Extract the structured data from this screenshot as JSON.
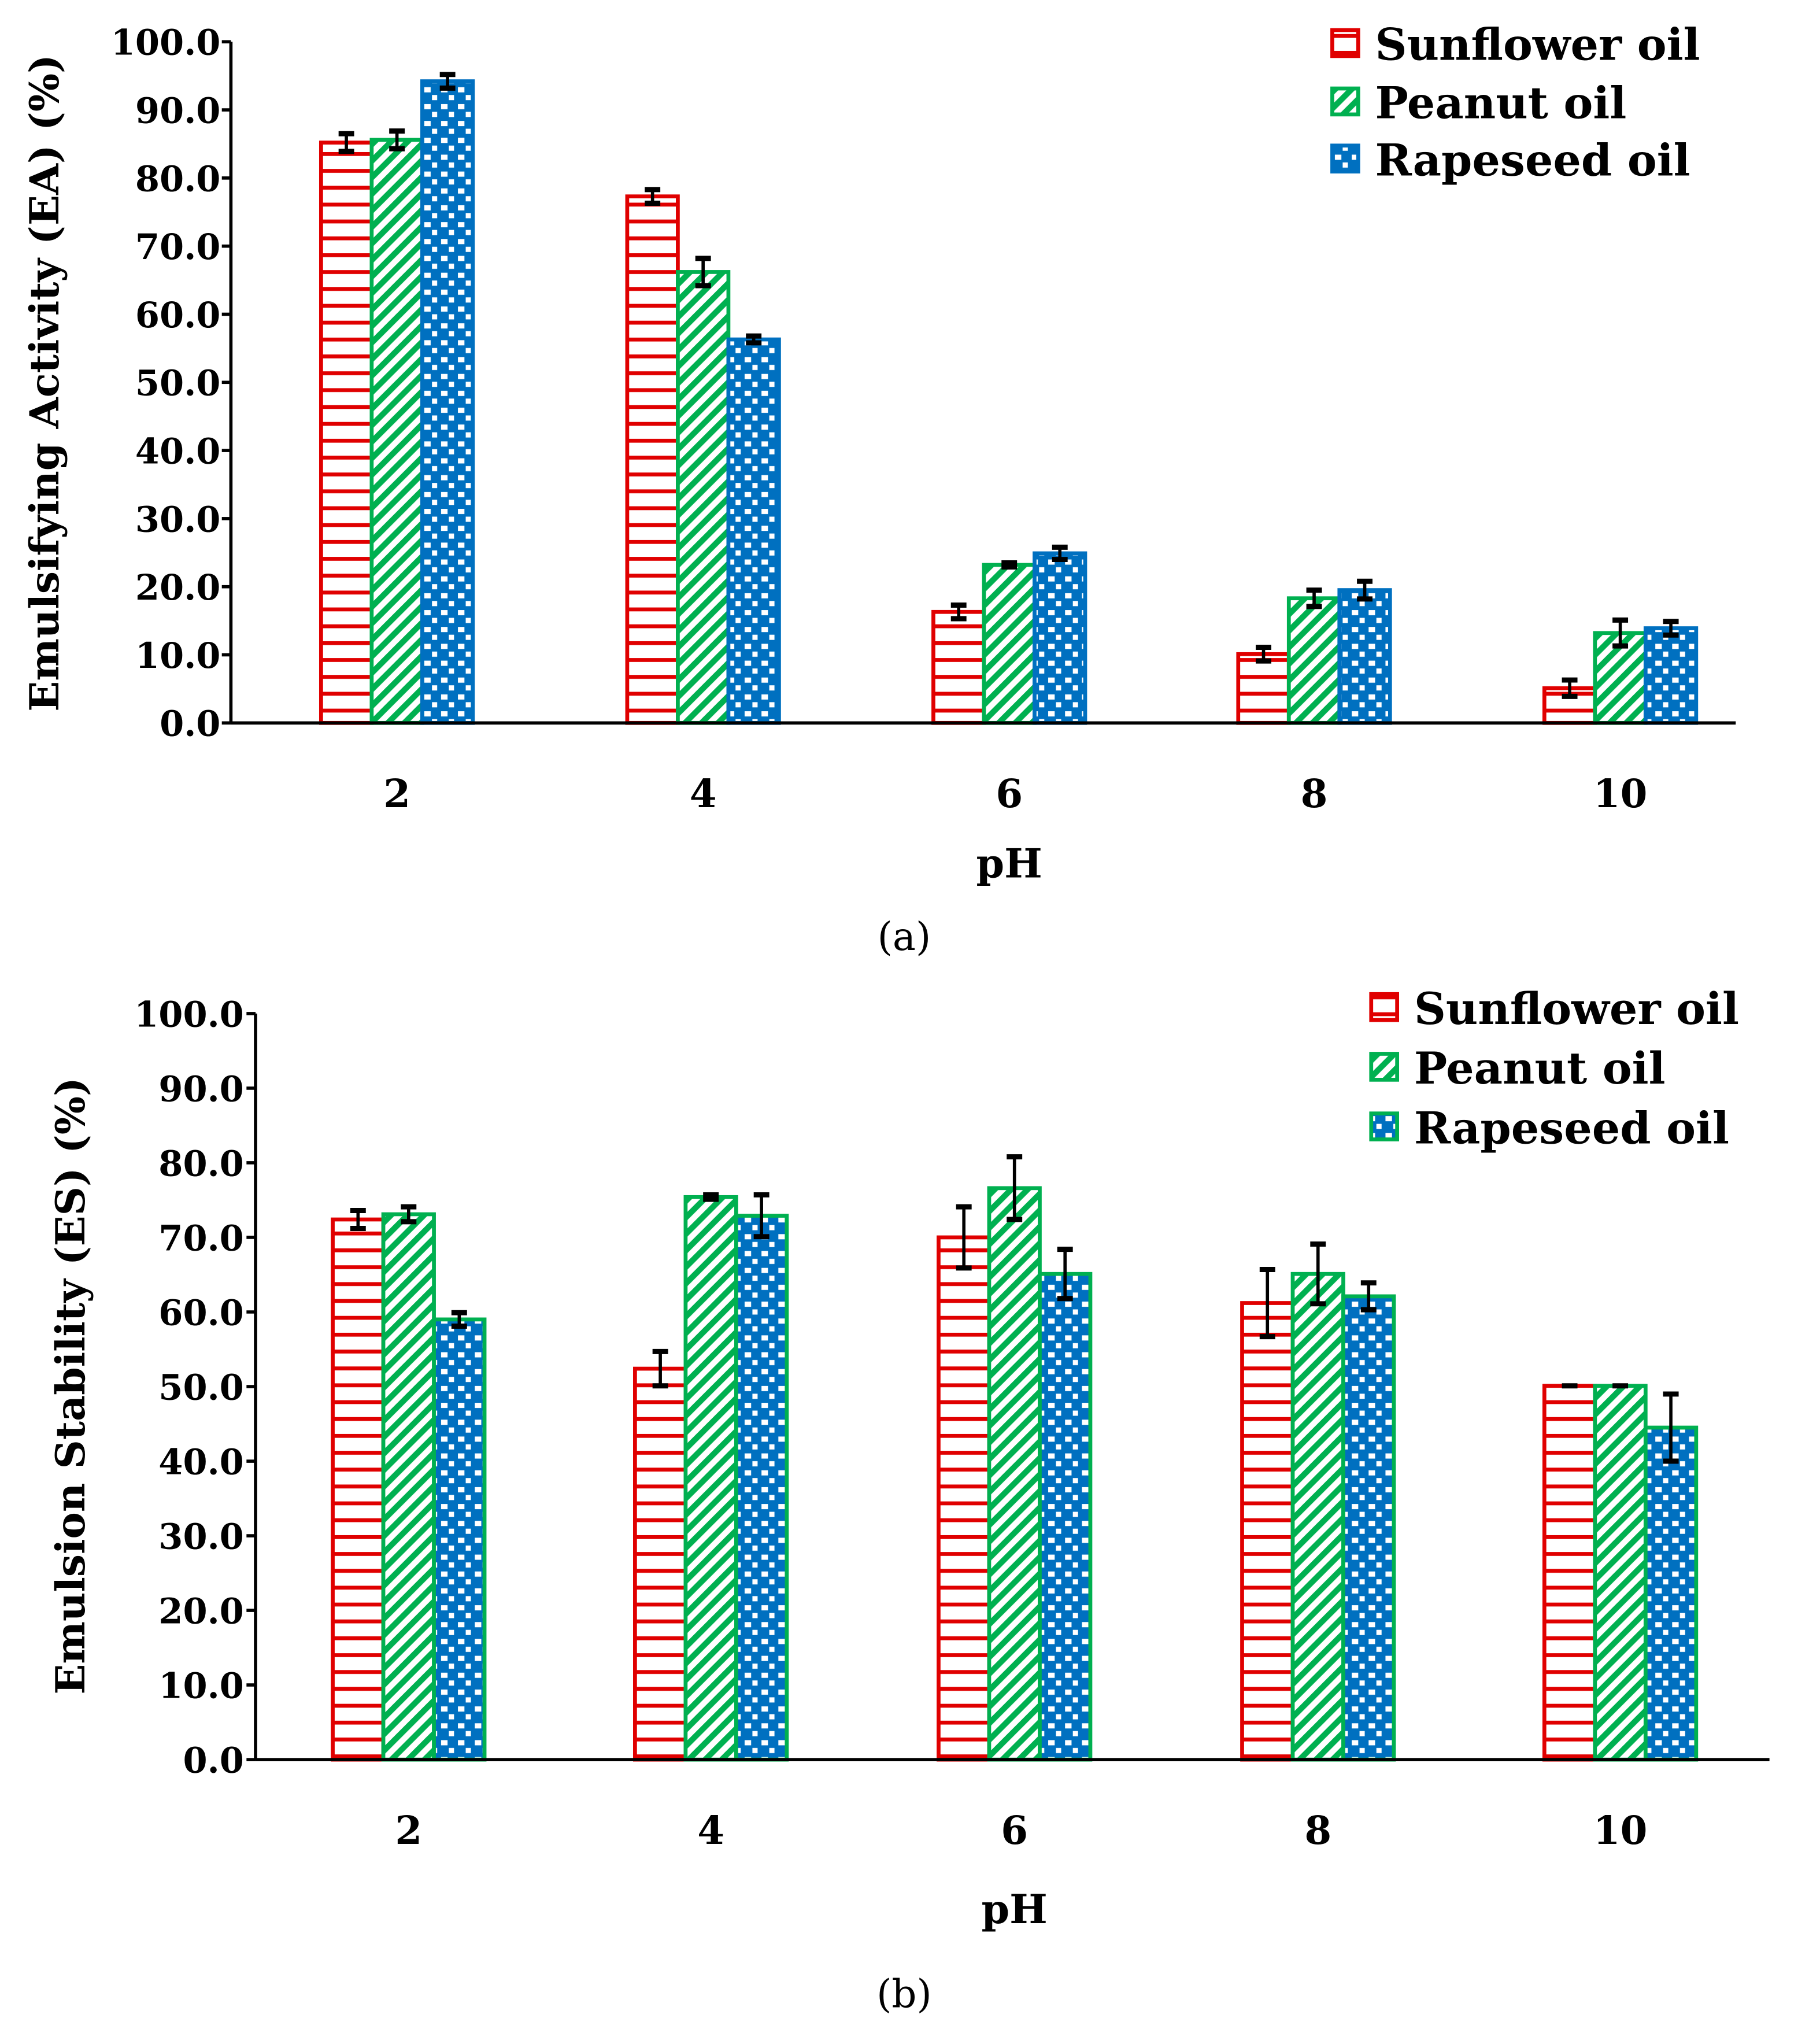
{
  "colors": {
    "sunflower": "#e00000",
    "peanut": "#00b050",
    "rapeseed": "#0070c0"
  },
  "chart_data": [
    {
      "type": "bar",
      "caption": "(a)",
      "xlabel": "pH",
      "ylabel": "Emulsifying Activity (EA) (%)",
      "ylim": [
        0,
        100
      ],
      "yticks": [
        "0.0",
        "10.0",
        "20.0",
        "30.0",
        "40.0",
        "50.0",
        "60.0",
        "70.0",
        "80.0",
        "90.0",
        "100.0"
      ],
      "categories": [
        "2",
        "4",
        "6",
        "8",
        "10"
      ],
      "legend_position": "top-right",
      "series": [
        {
          "name": "Sunflower oil",
          "pattern": "horizontal-lines",
          "values": [
            85.2,
            77.3,
            16.3,
            10.1,
            5.1
          ],
          "errors": [
            1.3,
            1.0,
            1.0,
            1.0,
            1.2
          ]
        },
        {
          "name": "Peanut oil",
          "pattern": "diagonal-lines",
          "values": [
            85.6,
            66.2,
            23.2,
            18.3,
            13.2
          ],
          "errors": [
            1.3,
            2.0,
            0.3,
            1.2,
            1.9
          ]
        },
        {
          "name": "Rapeseed oil",
          "pattern": "dotted",
          "values": [
            94.2,
            56.3,
            24.9,
            19.5,
            13.9
          ],
          "errors": [
            1.0,
            0.5,
            0.9,
            1.3,
            1.0
          ]
        }
      ]
    },
    {
      "type": "bar",
      "caption": "(b)",
      "xlabel": "pH",
      "ylabel": "Emulsion Stability (ES) (%)",
      "ylim": [
        0,
        100
      ],
      "yticks": [
        "0.0",
        "10.0",
        "20.0",
        "30.0",
        "40.0",
        "50.0",
        "60.0",
        "70.0",
        "80.0",
        "90.0",
        "100.0"
      ],
      "categories": [
        "2",
        "4",
        "6",
        "8",
        "10"
      ],
      "legend_position": "top-right",
      "series": [
        {
          "name": "Sunflower oil",
          "pattern": "horizontal-lines",
          "values": [
            72.4,
            52.4,
            70.0,
            61.2,
            50.1
          ],
          "errors": [
            1.2,
            2.3,
            4.1,
            4.5,
            0.0
          ]
        },
        {
          "name": "Peanut oil",
          "pattern": "diagonal-lines",
          "values": [
            73.1,
            75.4,
            76.6,
            65.1,
            50.1
          ],
          "errors": [
            1.0,
            0.3,
            4.2,
            4.0,
            0.0
          ]
        },
        {
          "name": "Rapeseed oil",
          "pattern": "dotted",
          "values": [
            59.0,
            72.9,
            65.1,
            62.1,
            44.5
          ],
          "errors": [
            0.9,
            2.8,
            3.3,
            1.8,
            4.5
          ]
        }
      ]
    }
  ]
}
